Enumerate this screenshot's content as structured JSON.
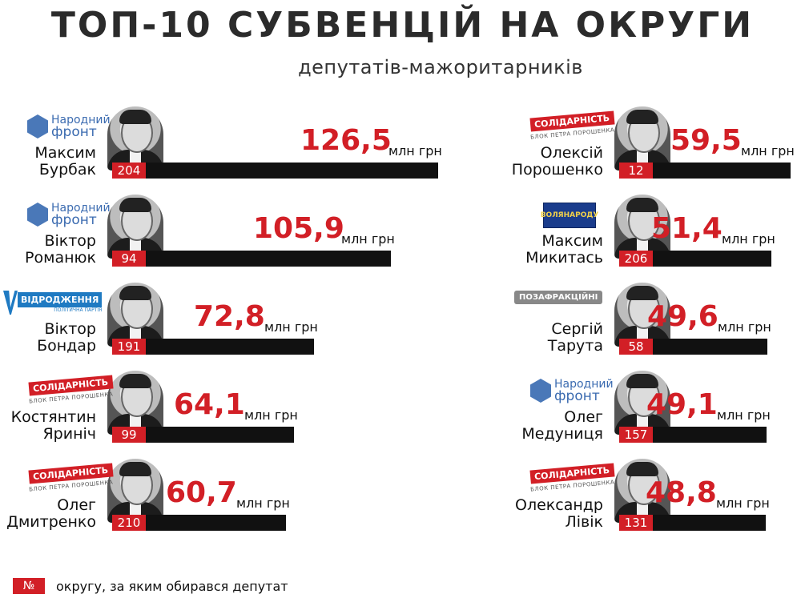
{
  "title": "ТОП-10 СУБВЕНЦІЙ НА ОКРУГИ",
  "subtitle": "депутатів-мажоритарників",
  "unit": "млн грн",
  "legend": {
    "badge": "№",
    "text": "округу, за яким обирався депутат"
  },
  "colors": {
    "accent": "#d21f26",
    "bar": "#111111"
  },
  "chart_data": {
    "type": "bar",
    "title": "ТОП-10 СУБВЕНЦІЙ НА ОКРУГИ",
    "subtitle": "депутатів-мажоритарників",
    "unit": "млн грн",
    "items": [
      {
        "first": "Максим",
        "last": "Бурбак",
        "district": "204",
        "value": 126.5,
        "label": "126,5",
        "party": "Народний фронт"
      },
      {
        "first": "Віктор",
        "last": "Романюк",
        "district": "94",
        "value": 105.9,
        "label": "105,9",
        "party": "Народний фронт"
      },
      {
        "first": "Віктор",
        "last": "Бондар",
        "district": "191",
        "value": 72.8,
        "label": "72,8",
        "party": "Відродження"
      },
      {
        "first": "Костянтин",
        "last": "Яриніч",
        "district": "99",
        "value": 64.1,
        "label": "64,1",
        "party": "Солідарність"
      },
      {
        "first": "Олег",
        "last": "Дмитренко",
        "district": "210",
        "value": 60.7,
        "label": "60,7",
        "party": "Солідарність"
      },
      {
        "first": "Олексій",
        "last": "Порошенко",
        "district": "12",
        "value": 59.5,
        "label": "59,5",
        "party": "Солідарність"
      },
      {
        "first": "Максим",
        "last": "Микитась",
        "district": "206",
        "value": 51.4,
        "label": "51,4",
        "party": "Воля народу"
      },
      {
        "first": "Сергій",
        "last": "Тарута",
        "district": "58",
        "value": 49.6,
        "label": "49,6",
        "party": "Позафракційні"
      },
      {
        "first": "Олег",
        "last": "Медуниця",
        "district": "157",
        "value": 49.1,
        "label": "49,1",
        "party": "Народний фронт"
      },
      {
        "first": "Олександр",
        "last": "Лівік",
        "district": "131",
        "value": 48.8,
        "label": "48,8",
        "party": "Солідарність"
      }
    ]
  },
  "logos": {
    "nf": {
      "line1": "Народний",
      "line2": "фронт"
    },
    "sol": {
      "main": "СОЛІДАРНІСТЬ",
      "sub": "БЛОК ПЕТРА ПОРОШЕНКА"
    },
    "vid": {
      "main": "ВІДРОДЖЕННЯ",
      "sub": "ПОЛІТИЧНА ПАРТІЯ"
    },
    "vp": {
      "line1": "ВОЛЯ",
      "line2": "НАРОДУ"
    },
    "pf": {
      "main": "ПОЗАФРАКЦІЙНІ"
    }
  }
}
